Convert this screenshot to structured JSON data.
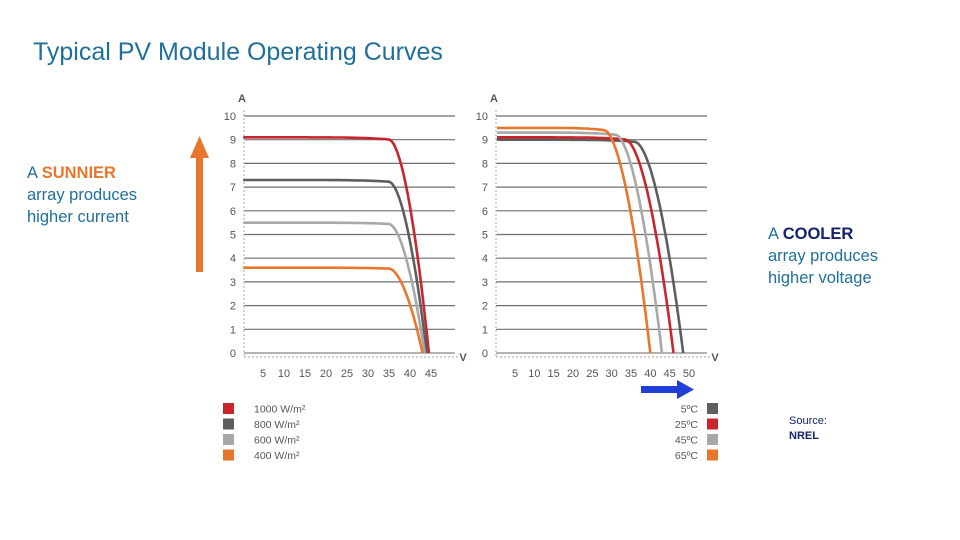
{
  "title": "Typical PV Module Operating Curves",
  "notes": {
    "sunnier": {
      "prefix": "A ",
      "highlight": "SUNNIER",
      "line2": "array produces",
      "line3": "higher current"
    },
    "cooler": {
      "prefix": "A ",
      "highlight": "COOLER",
      "line2": "array produces",
      "line3": "higher voltage"
    }
  },
  "source": {
    "label": "Source:",
    "value": "NREL"
  },
  "colors": {
    "accent_text": "#1f6f9b",
    "sun_arrow": "#e8762d",
    "cool_arrow": "#1f3fd6"
  },
  "chart_data": [
    {
      "type": "line",
      "title": "",
      "xlabel": "V",
      "ylabel": "A",
      "xlim": [
        0,
        45
      ],
      "ylim": [
        0,
        10
      ],
      "xticks": [
        5,
        10,
        15,
        20,
        25,
        30,
        35,
        40,
        45
      ],
      "yticks": [
        0,
        1,
        2,
        3,
        4,
        5,
        6,
        7,
        8,
        9,
        10
      ],
      "grid": true,
      "legend": "bottom-left",
      "series": [
        {
          "name": "1000 W/m²",
          "color": "#c8262c",
          "isc": 9.1,
          "voc": 44.5,
          "knee": 35
        },
        {
          "name": "800 W/m²",
          "color": "#5e5e5e",
          "isc": 7.3,
          "voc": 44.0,
          "knee": 35
        },
        {
          "name": "600 W/m²",
          "color": "#a8a8a8",
          "isc": 5.5,
          "voc": 43.5,
          "knee": 35
        },
        {
          "name": "400 W/m²",
          "color": "#e8762d",
          "isc": 3.6,
          "voc": 43.0,
          "knee": 35
        }
      ]
    },
    {
      "type": "line",
      "title": "",
      "xlabel": "V",
      "ylabel": "A",
      "xlim": [
        0,
        50
      ],
      "ylim": [
        0,
        10
      ],
      "xticks": [
        5,
        10,
        15,
        20,
        25,
        30,
        35,
        40,
        45,
        50
      ],
      "yticks": [
        0,
        1,
        2,
        3,
        4,
        5,
        6,
        7,
        8,
        9,
        10
      ],
      "grid": true,
      "legend": "bottom-right",
      "series": [
        {
          "name": "5ºC",
          "color": "#5e5e5e",
          "isc": 9.0,
          "voc": 48.5,
          "knee": 36
        },
        {
          "name": "25ºC",
          "color": "#c8262c",
          "isc": 9.1,
          "voc": 46.0,
          "knee": 33.5
        },
        {
          "name": "45ºC",
          "color": "#a8a8a8",
          "isc": 9.3,
          "voc": 43.0,
          "knee": 31
        },
        {
          "name": "65ºC",
          "color": "#e8762d",
          "isc": 9.5,
          "voc": 40.0,
          "knee": 28
        }
      ]
    }
  ]
}
